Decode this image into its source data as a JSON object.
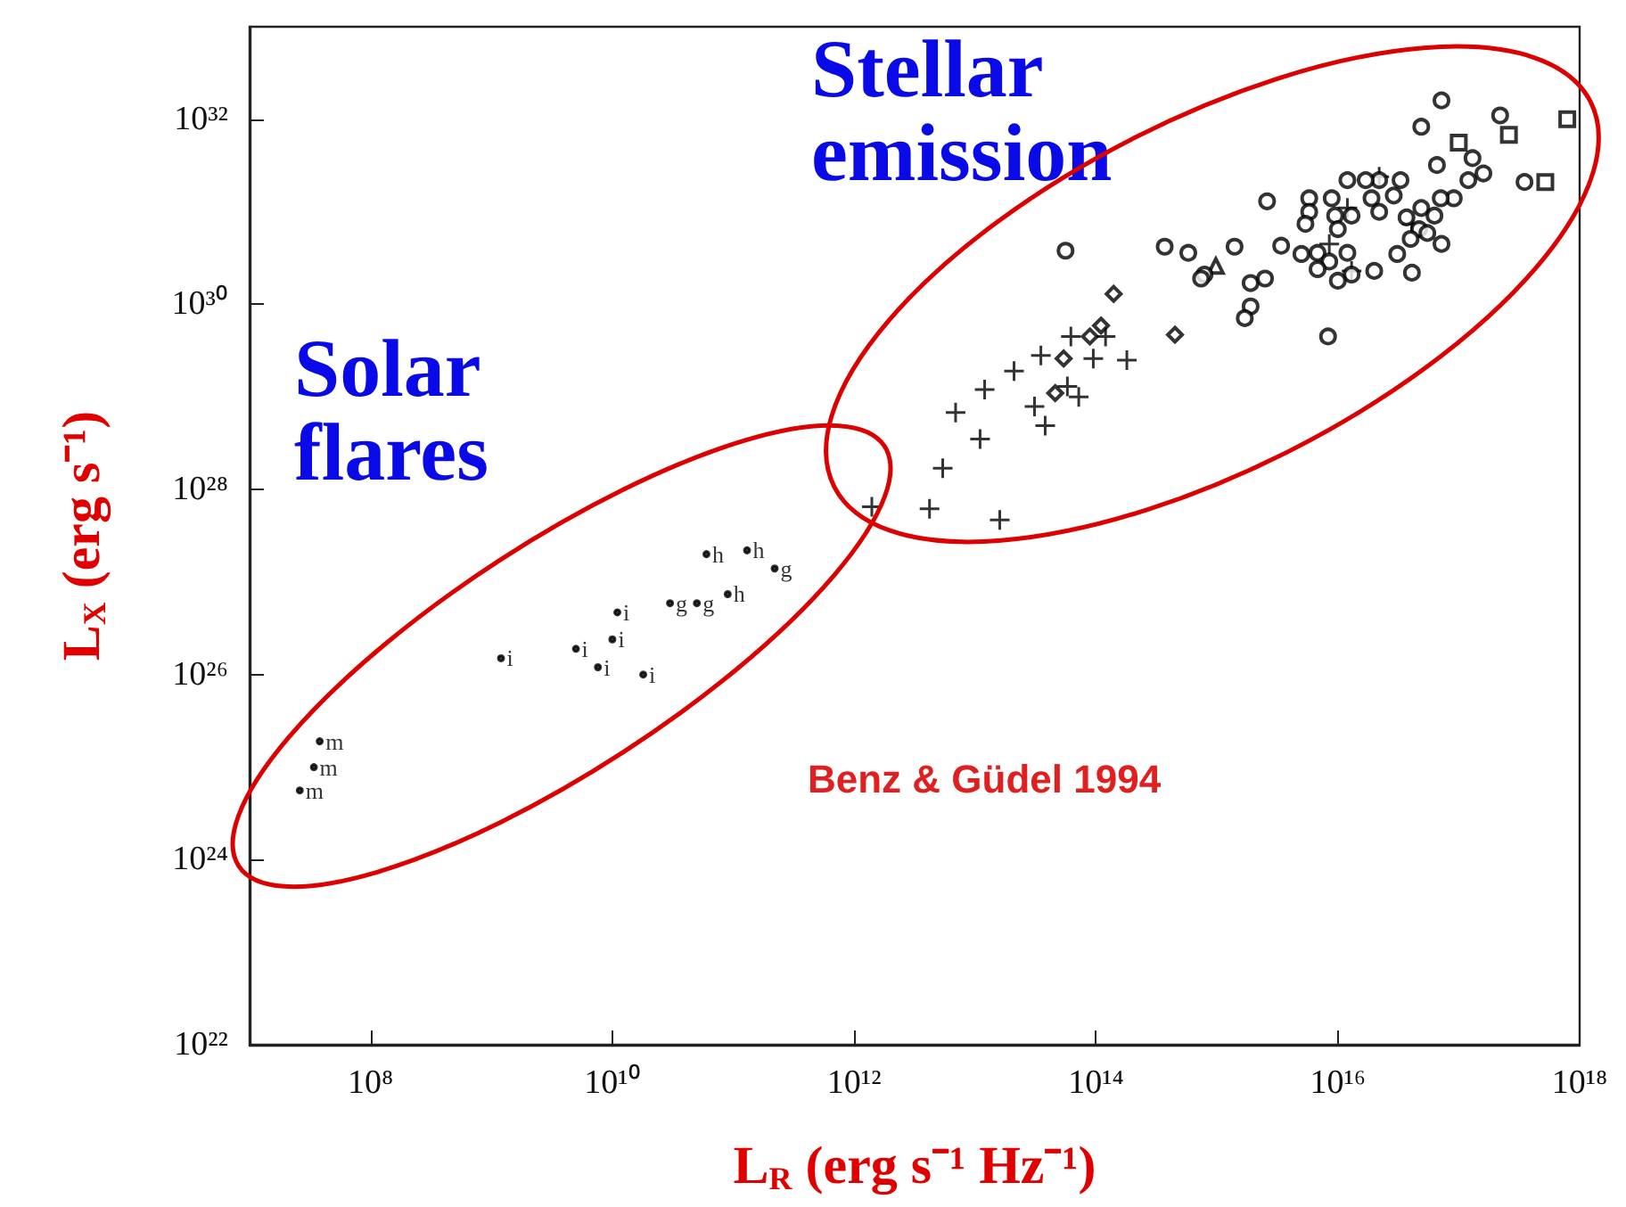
{
  "chart_data": {
    "type": "scatter",
    "xlabel": "L$_{R}$ (erg s⁻¹ Hz⁻¹)",
    "ylabel": "L$_{X}$ (erg s⁻¹)",
    "log": "xy",
    "xlim": [
      10000000.0,
      1e+18
    ],
    "ylim": [
      1e+22,
      1e+33
    ],
    "xticks": [
      {
        "value": 100000000.0,
        "label": "10⁸"
      },
      {
        "value": 10000000000.0,
        "label": "10¹⁰"
      },
      {
        "value": 1000000000000.0,
        "label": "10¹²"
      },
      {
        "value": 100000000000000.0,
        "label": "10¹⁴"
      },
      {
        "value": 1e+16,
        "label": "10¹⁶"
      },
      {
        "value": 1e+18,
        "label": "10¹⁸"
      }
    ],
    "yticks": [
      {
        "value": 1e+22,
        "label": "10²²"
      },
      {
        "value": 1e+24,
        "label": "10²⁴"
      },
      {
        "value": 1e+26,
        "label": "10²⁶"
      },
      {
        "value": 1e+28,
        "label": "10²⁸"
      },
      {
        "value": 1e+30,
        "label": "10³⁰"
      },
      {
        "value": 1e+32,
        "label": "10³²"
      }
    ],
    "grid": false,
    "legend": false,
    "annotations": [
      "Solar flares",
      "Stellar emission",
      "Benz & Güdel 1994"
    ],
    "series": [
      {
        "name": "m",
        "marker": "none",
        "color": "#000000",
        "x": [
          38000000.0,
          34000000.0,
          26000000.0
        ],
        "values": [
          1.9e+25,
          1e+25,
          5.6e+24
        ]
      },
      {
        "name": "i",
        "marker": "none",
        "color": "#000000",
        "x": [
          1200000000.0,
          5000000000.0,
          7600000000.0,
          10000000000.0,
          11000000000.0,
          18000000000.0
        ],
        "values": [
          1.5e+26,
          1.9e+26,
          1.2e+26,
          2.4e+26,
          4.7e+26,
          1e+26
        ]
      },
      {
        "name": "g",
        "marker": "none",
        "color": "#000000",
        "x": [
          30000000000.0,
          50000000000.0,
          220000000000.0
        ],
        "values": [
          5.9e+26,
          5.9e+26,
          1.4e+27
        ]
      },
      {
        "name": "h",
        "marker": "none",
        "color": "#000000",
        "x": [
          60000000000.0,
          130000000000.0,
          90000000000.0
        ],
        "values": [
          2e+27,
          2.2e+27,
          7.4e+26
        ]
      },
      {
        "marker": "cross",
        "color": "#000000",
        "x": [
          1400000000000.0,
          4200000000000.0,
          16000000000000.0,
          5400000000000.0,
          11000000000000.0,
          6900000000000.0,
          12000000000000.0,
          21000000000000.0,
          38000000000000.0,
          31000000000000.0,
          72000000000000.0,
          95000000000000.0,
          180000000000000.0,
          120000000000000.0,
          62000000000000.0,
          35000000000000.0,
          58000000000000.0,
          2.2e+16,
          1.2e+16,
          8500000000000000.0,
          1.3e+16,
          4.1e+16
        ],
        "values": [
          6.5e+27,
          6.2e+27,
          4.7e+27,
          1.7e+28,
          3.5e+28,
          6.8e+28,
          1.2e+29,
          1.9e+29,
          4.9e+28,
          7.9e+28,
          1e+29,
          2.6e+29,
          2.5e+29,
          4.5e+29,
          4.5e+29,
          2.8e+29,
          1.3e+29,
          2.4e+31,
          1.1e+31,
          4.5e+30,
          2.3e+30,
          7.4e+30
        ]
      },
      {
        "marker": "diamond",
        "color": "#000000",
        "x": [
          140000000000000.0,
          450000000000000.0,
          110000000000000.0,
          89000000000000.0,
          54000000000000.0,
          46000000000000.0
        ],
        "values": [
          1.3e+30,
          4.7e+29,
          5.9e+29,
          4.5e+29,
          2.6e+29,
          1.1e+29
        ]
      },
      {
        "marker": "square",
        "color": "#000000",
        "x": [
          1e+17,
          2.6e+17,
          5.2e+17,
          7.9e+17
        ],
        "values": [
          5.6e+31,
          6.8e+31,
          2.1e+31,
          1e+32
        ]
      },
      {
        "marker": "triangle",
        "color": "#000000",
        "x": [
          980000000000000.0
        ],
        "values": [
          2.6e+30
        ]
      },
      {
        "marker": "circle",
        "color": "#000000",
        "x": [
          56000000000000.0,
          7.2e+16,
          2.2e+17,
          4.9e+16,
          2600000000000000.0,
          6.6e+16,
          1.3e+17,
          1.6e+17,
          1.2e+17,
          9.1e+16,
          7.1e+16,
          3.5e+17,
          3.3e+16,
          2.2e+16,
          1.7e+16,
          1.2e+16,
          8900000000000000.0,
          5800000000000000.0,
          1.9e+16,
          2.9e+16,
          5800000000000000.0,
          9500000000000000.0,
          1.3e+16,
          2.2e+16,
          4.9e+16,
          6.3e+16,
          5400000000000000.0,
          1e+16,
          3.7e+16,
          4.7e+16,
          5.5e+16,
          7.2e+16,
          4e+16,
          1400000000000000.0,
          3400000000000000.0,
          5000000000000000.0,
          6800000000000000.0,
          1.2e+16,
          8500000000000000.0,
          6800000000000000.0,
          3.1e+16,
          2e+16,
          1.3e+16,
          4.1e+16,
          1e+16,
          790000000000000.0,
          1900000000000000.0,
          2500000000000000.0,
          1900000000000000.0,
          1700000000000000.0,
          8300000000000000.0,
          370000000000000.0,
          580000000000000.0,
          740000000000000.0
        ],
        "values": [
          3.8e+30,
          1.6e+32,
          1.1e+32,
          8.3e+31,
          1.3e+31,
          3.2e+31,
          3.8e+31,
          2.6e+31,
          2.2e+31,
          1.4e+31,
          1.4e+31,
          2.1e+31,
          2.2e+31,
          2.2e+31,
          2.2e+31,
          2.2e+31,
          1.4e+31,
          1.4e+31,
          1.4e+31,
          1.5e+31,
          1e+31,
          9.1e+30,
          9.1e+30,
          1e+31,
          1.1e+31,
          9.1e+30,
          7.4e+30,
          6.5e+30,
          8.7e+30,
          6.5e+30,
          5.9e+30,
          4.5e+30,
          5.1e+30,
          4.2e+30,
          4.3e+30,
          3.5e+30,
          3.6e+30,
          3.6e+30,
          2.9e+30,
          2.4e+30,
          3.5e+30,
          2.3e+30,
          2.1e+30,
          2.2e+30,
          1.8e+30,
          2.1e+30,
          1.7e+30,
          1.9e+30,
          9.5e+29,
          7.1e+29,
          4.5e+29,
          4.2e+30,
          3.6e+30,
          1.9e+30
        ]
      }
    ]
  }
}
